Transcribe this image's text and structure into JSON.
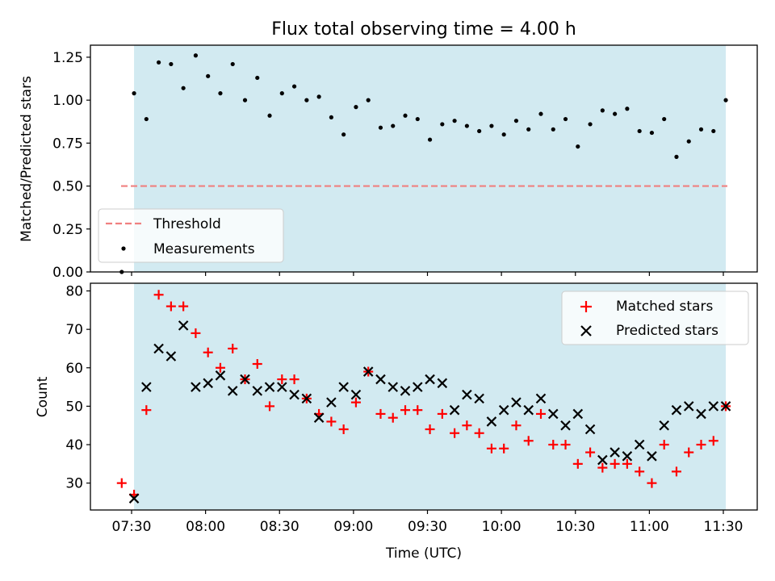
{
  "chart_data": [
    {
      "type": "scatter",
      "title": "Flux total observing time = 4.00 h",
      "ylabel": "Matched/Predicted stars",
      "xlabel": "",
      "ylim": [
        0,
        1.32
      ],
      "yticks": [
        "0.00",
        "0.25",
        "0.50",
        "0.75",
        "1.00",
        "1.25"
      ],
      "shaded_interval": [
        "07:31",
        "11:31"
      ],
      "shaded_color": "#add8e6",
      "threshold": 0.5,
      "threshold_color": "#f08080",
      "legend_position": "lower-left",
      "legend": [
        "Threshold",
        "Measurements"
      ],
      "series": [
        {
          "name": "Measurements",
          "color": "#000000",
          "x": [
            "07:26",
            "07:31",
            "07:36",
            "07:41",
            "07:46",
            "07:51",
            "07:56",
            "08:01",
            "08:06",
            "08:11",
            "08:16",
            "08:21",
            "08:26",
            "08:31",
            "08:36",
            "08:41",
            "08:46",
            "08:51",
            "08:56",
            "09:01",
            "09:06",
            "09:11",
            "09:16",
            "09:21",
            "09:26",
            "09:31",
            "09:36",
            "09:41",
            "09:46",
            "09:51",
            "09:56",
            "10:01",
            "10:06",
            "10:11",
            "10:16",
            "10:21",
            "10:26",
            "10:31",
            "10:36",
            "10:41",
            "10:46",
            "10:51",
            "10:56",
            "11:01",
            "11:06",
            "11:11",
            "11:16",
            "11:21",
            "11:26",
            "11:31"
          ],
          "y": [
            0.0,
            1.04,
            0.89,
            1.22,
            1.21,
            1.07,
            1.26,
            1.14,
            1.04,
            1.21,
            1.0,
            1.13,
            0.91,
            1.04,
            1.08,
            1.0,
            1.02,
            0.9,
            0.8,
            0.96,
            1.0,
            0.84,
            0.85,
            0.91,
            0.89,
            0.77,
            0.86,
            0.88,
            0.85,
            0.82,
            0.85,
            0.8,
            0.88,
            0.83,
            0.92,
            0.83,
            0.89,
            0.73,
            0.86,
            0.94,
            0.92,
            0.95,
            0.82,
            0.81,
            0.89,
            0.67,
            0.76,
            0.83,
            0.82,
            1.0
          ]
        }
      ]
    },
    {
      "type": "scatter",
      "title": "",
      "ylabel": "Count",
      "xlabel": "Time (UTC)",
      "ylim": [
        23,
        82
      ],
      "yticks": [
        "30",
        "40",
        "50",
        "60",
        "70",
        "80"
      ],
      "xticks": [
        "07:30",
        "08:00",
        "08:30",
        "09:00",
        "09:30",
        "10:00",
        "10:30",
        "11:00",
        "11:30"
      ],
      "legend_position": "top-right",
      "legend": [
        "Matched stars",
        "Predicted stars"
      ],
      "series": [
        {
          "name": "Matched stars",
          "marker": "+",
          "color": "#ff0000",
          "x": [
            "07:26",
            "07:31",
            "07:36",
            "07:41",
            "07:46",
            "07:51",
            "07:56",
            "08:01",
            "08:06",
            "08:11",
            "08:16",
            "08:21",
            "08:26",
            "08:31",
            "08:36",
            "08:41",
            "08:46",
            "08:51",
            "08:56",
            "09:01",
            "09:06",
            "09:11",
            "09:16",
            "09:21",
            "09:26",
            "09:31",
            "09:36",
            "09:41",
            "09:46",
            "09:51",
            "09:56",
            "10:01",
            "10:06",
            "10:11",
            "10:16",
            "10:21",
            "10:26",
            "10:31",
            "10:36",
            "10:41",
            "10:46",
            "10:51",
            "10:56",
            "11:01",
            "11:06",
            "11:11",
            "11:16",
            "11:21",
            "11:26",
            "11:31"
          ],
          "y": [
            30,
            27,
            49,
            79,
            76,
            76,
            69,
            64,
            60,
            65,
            57,
            61,
            50,
            57,
            57,
            52,
            48,
            46,
            44,
            51,
            59,
            48,
            47,
            49,
            49,
            44,
            48,
            43,
            45,
            43,
            39,
            39,
            45,
            41,
            48,
            40,
            40,
            35,
            38,
            34,
            35,
            35,
            33,
            30,
            40,
            33,
            38,
            40,
            41,
            50
          ]
        },
        {
          "name": "Predicted stars",
          "marker": "x",
          "color": "#000000",
          "x": [
            "07:31",
            "07:36",
            "07:41",
            "07:46",
            "07:51",
            "07:56",
            "08:01",
            "08:06",
            "08:11",
            "08:16",
            "08:21",
            "08:26",
            "08:31",
            "08:36",
            "08:41",
            "08:46",
            "08:51",
            "08:56",
            "09:01",
            "09:06",
            "09:11",
            "09:16",
            "09:21",
            "09:26",
            "09:31",
            "09:36",
            "09:41",
            "09:46",
            "09:51",
            "09:56",
            "10:01",
            "10:06",
            "10:11",
            "10:16",
            "10:21",
            "10:26",
            "10:31",
            "10:36",
            "10:41",
            "10:46",
            "10:51",
            "10:56",
            "11:01",
            "11:06",
            "11:11",
            "11:16",
            "11:21",
            "11:26",
            "11:31"
          ],
          "y": [
            26,
            55,
            65,
            63,
            71,
            55,
            56,
            58,
            54,
            57,
            54,
            55,
            55,
            53,
            52,
            47,
            51,
            55,
            53,
            59,
            57,
            55,
            54,
            55,
            57,
            56,
            49,
            53,
            52,
            46,
            49,
            51,
            49,
            52,
            48,
            45,
            48,
            44,
            36,
            38,
            37,
            40,
            37,
            45,
            49,
            50,
            48,
            50,
            50
          ]
        }
      ]
    }
  ]
}
